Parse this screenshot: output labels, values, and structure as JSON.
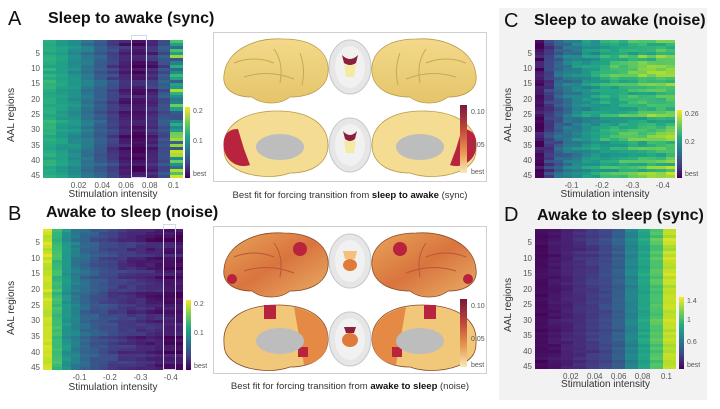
{
  "figure": {
    "panels": [
      {
        "letter": "A",
        "title": "Sleep to awake (sync)"
      },
      {
        "letter": "B",
        "title": "Awake to sleep (noise)"
      },
      {
        "letter": "C",
        "title": "Sleep to awake (noise)"
      },
      {
        "letter": "D",
        "title": "Awake to sleep (sync)"
      }
    ],
    "captions": {
      "top": {
        "prefix": "Best fit for forcing transition from ",
        "bold": "sleep to awake",
        "suffix": " (sync)"
      },
      "bottom": {
        "prefix": "Best fit for forcing transition from ",
        "bold": "awake to sleep",
        "suffix": " (noise)"
      }
    },
    "brain_colorbar": {
      "ticks": [
        "0.10",
        "0.05",
        "best"
      ],
      "colors": [
        "#7a1a3a",
        "#c0463a",
        "#e89a52",
        "#f6e3a8"
      ]
    }
  },
  "chart_data": [
    {
      "panel": "A",
      "type": "heatmap",
      "title": "Sleep to awake (sync)",
      "xlabel": "Stimulation intensity",
      "ylabel": "AAL regions",
      "xticks": [
        "0.02",
        "0.04",
        "0.06",
        "0.08",
        "0.1"
      ],
      "yticks": [
        "5",
        "10",
        "15",
        "20",
        "25",
        "30",
        "35",
        "40",
        "45"
      ],
      "colorbar_ticks": [
        "0.2",
        "0.1",
        "best"
      ],
      "n_rows": 45,
      "column_means": [
        0.62,
        0.57,
        0.5,
        0.4,
        0.3,
        0.2,
        0.1,
        0.05,
        0.12,
        0.25,
        0.55
      ],
      "highlight_column": 7,
      "colorbar_range": [
        "best",
        0.2
      ]
    },
    {
      "panel": "B",
      "type": "heatmap",
      "title": "Awake to sleep (noise)",
      "xlabel": "Stimulation intensity",
      "ylabel": "AAL regions",
      "xticks": [
        "-0.1",
        "-0.2",
        "-0.3",
        "-0.4"
      ],
      "yticks": [
        "5",
        "10",
        "15",
        "20",
        "25",
        "30",
        "35",
        "40",
        "45"
      ],
      "colorbar_ticks": [
        "0.2",
        "0.1",
        "best"
      ],
      "n_rows": 45,
      "column_means": [
        0.92,
        0.68,
        0.52,
        0.42,
        0.34,
        0.28,
        0.24,
        0.2,
        0.17,
        0.15,
        0.13,
        0.11,
        0.09,
        0.06,
        0.05
      ],
      "highlight_column": 13,
      "colorbar_range": [
        "best",
        0.2
      ]
    },
    {
      "panel": "C",
      "type": "heatmap",
      "title": "Sleep to awake (noise)",
      "xlabel": "Stimulation intensity",
      "ylabel": "AAL regions",
      "xticks": [
        "-0.1",
        "-0.2",
        "-0.3",
        "-0.4"
      ],
      "yticks": [
        "5",
        "10",
        "15",
        "20",
        "25",
        "30",
        "35",
        "40",
        "45"
      ],
      "colorbar_ticks": [
        "0.26",
        "0.2",
        "best"
      ],
      "n_rows": 45,
      "column_means": [
        0.05,
        0.18,
        0.3,
        0.4,
        0.46,
        0.52,
        0.56,
        0.6,
        0.63,
        0.66,
        0.68,
        0.7,
        0.72,
        0.74,
        0.75
      ],
      "highlight_column": null,
      "colorbar_range": [
        "best",
        0.26
      ]
    },
    {
      "panel": "D",
      "type": "heatmap",
      "title": "Awake to sleep (sync)",
      "xlabel": "Stimulation intensity",
      "ylabel": "AAL regions",
      "xticks": [
        "0.02",
        "0.04",
        "0.06",
        "0.08",
        "0.1"
      ],
      "yticks": [
        "5",
        "10",
        "15",
        "20",
        "25",
        "30",
        "35",
        "40",
        "45"
      ],
      "colorbar_ticks": [
        "1.4",
        "1",
        "0.6",
        "best"
      ],
      "n_rows": 45,
      "column_means": [
        0.03,
        0.06,
        0.09,
        0.13,
        0.17,
        0.22,
        0.3,
        0.45,
        0.58,
        0.72,
        0.9
      ],
      "highlight_column": null,
      "colorbar_range": [
        "best",
        1.4
      ]
    }
  ]
}
